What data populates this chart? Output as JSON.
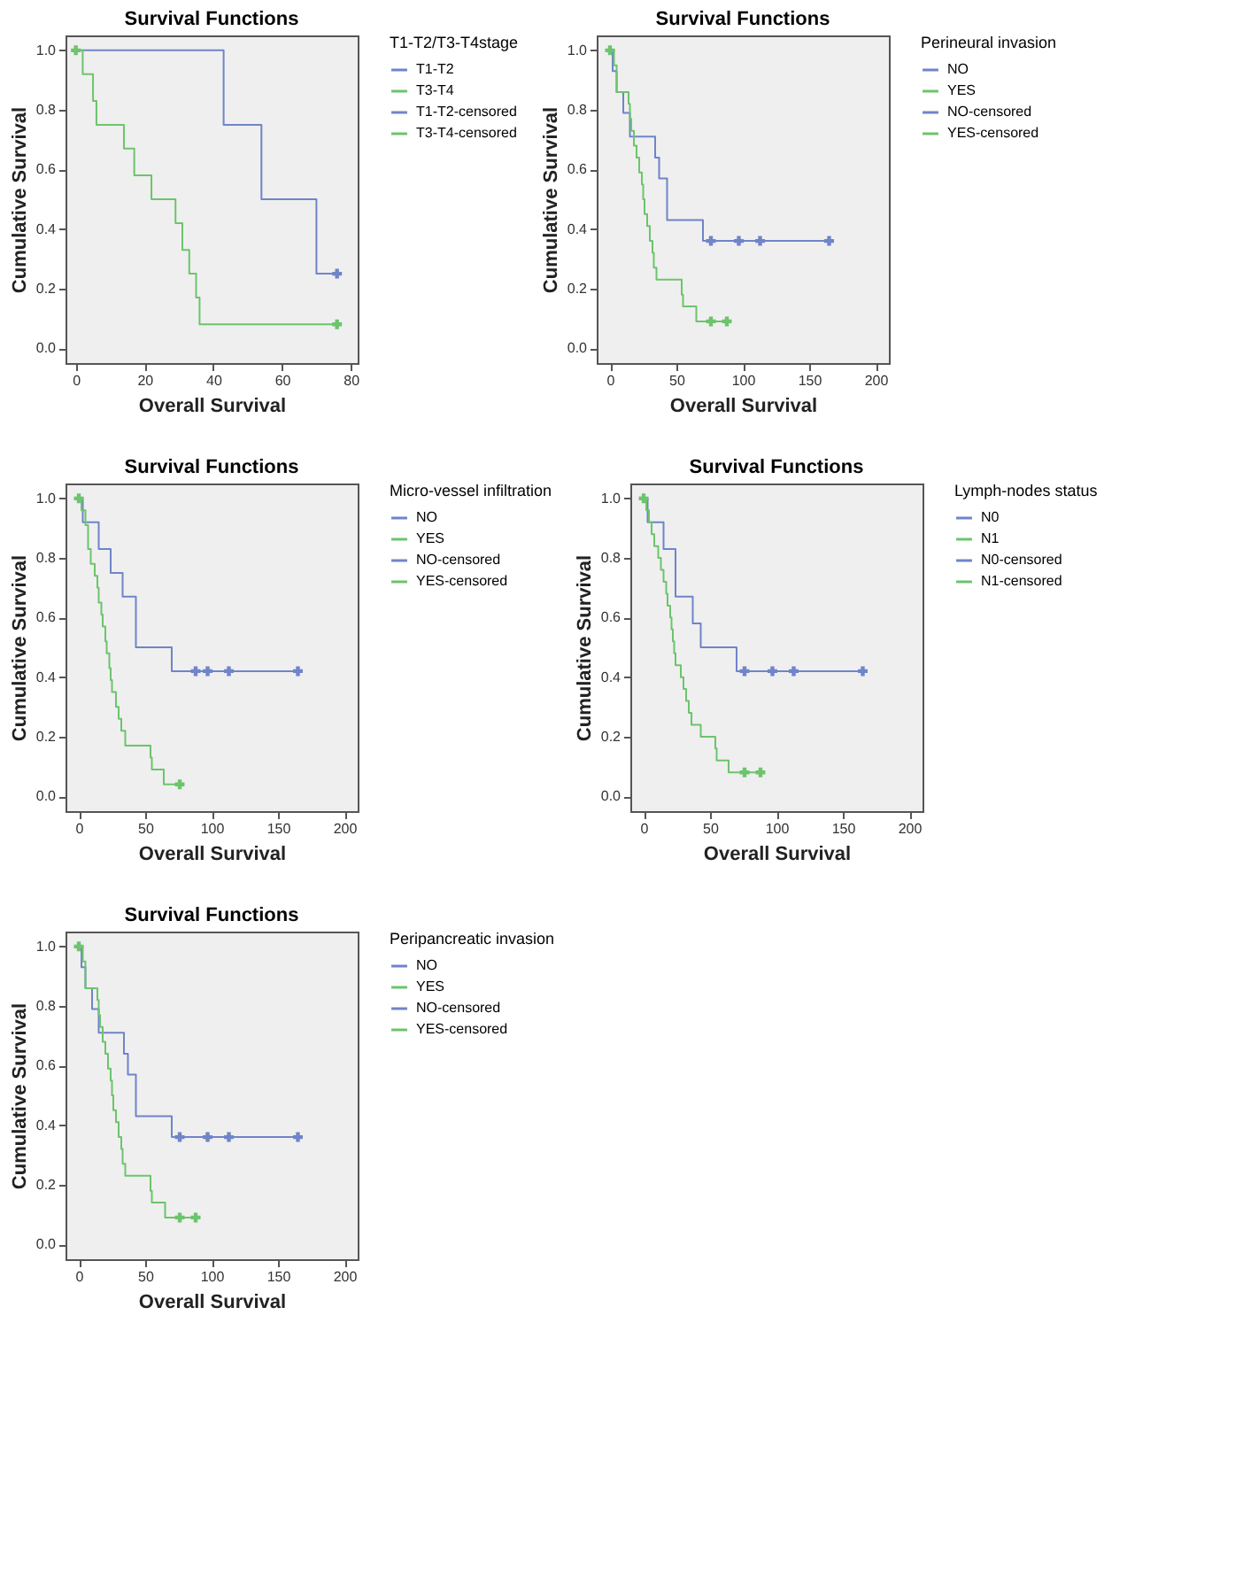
{
  "chart_data": [
    {
      "type": "step",
      "title": "Survival Functions",
      "xlabel": "Overall Survival",
      "ylabel": "Cumulative Survival",
      "legend_title": "T1-T2/T3-T4stage",
      "legend": "right",
      "grid": false,
      "line_style": "solid",
      "xlim": [
        -3,
        82
      ],
      "xticks": [
        0,
        20,
        40,
        60,
        80
      ],
      "ylim": [
        -0.05,
        1.05
      ],
      "yticks": [
        {
          "value": 0,
          "label": "0.0"
        },
        {
          "value": 0.2,
          "label": "0.2"
        },
        {
          "value": 0.4,
          "label": "0.4"
        },
        {
          "value": 0.6,
          "label": "0.6"
        },
        {
          "value": 0.8,
          "label": "0.8"
        },
        {
          "value": 1,
          "label": "1.0"
        }
      ],
      "series": [
        {
          "name": "T1-T2",
          "type": "step",
          "marker": "none",
          "color": "#6f84c9",
          "x": [
            0,
            43,
            54,
            70,
            76
          ],
          "values": [
            1,
            0.75,
            0.5,
            0.25,
            0.25
          ]
        },
        {
          "name": "T3-T4",
          "type": "step",
          "marker": "none",
          "color": "#6cc46c",
          "x": [
            0,
            2,
            5,
            6,
            14,
            17,
            22,
            29,
            31,
            33,
            35,
            36,
            76
          ],
          "values": [
            1,
            0.92,
            0.83,
            0.75,
            0.67,
            0.58,
            0.5,
            0.42,
            0.33,
            0.25,
            0.17,
            0.08,
            0.08
          ]
        },
        {
          "name": "T1-T2-censored",
          "type": "scatter",
          "marker": "cross",
          "color": "#6f84c9",
          "x": [
            76
          ],
          "values": [
            0.25
          ]
        },
        {
          "name": "T3-T4-censored",
          "type": "scatter",
          "marker": "cross",
          "color": "#6cc46c",
          "x": [
            0,
            76
          ],
          "values": [
            1,
            0.08
          ]
        }
      ]
    },
    {
      "type": "step",
      "title": "Survival Functions",
      "xlabel": "Overall Survival",
      "ylabel": "Cumulative Survival",
      "legend_title": "Perineural invasion",
      "legend": "right",
      "grid": false,
      "line_style": "solid",
      "xlim": [
        -10,
        210
      ],
      "xticks": [
        0,
        50,
        100,
        150,
        200
      ],
      "ylim": [
        -0.05,
        1.05
      ],
      "yticks": [
        {
          "value": 0,
          "label": "0.0"
        },
        {
          "value": 0.2,
          "label": "0.2"
        },
        {
          "value": 0.4,
          "label": "0.4"
        },
        {
          "value": 0.6,
          "label": "0.6"
        },
        {
          "value": 0.8,
          "label": "0.8"
        },
        {
          "value": 1,
          "label": "1.0"
        }
      ],
      "series": [
        {
          "name": "NO",
          "type": "step",
          "marker": "none",
          "color": "#6f84c9",
          "x": [
            0,
            2,
            5,
            10,
            15,
            34,
            37,
            43,
            70,
            165
          ],
          "values": [
            1,
            0.93,
            0.86,
            0.79,
            0.71,
            0.64,
            0.57,
            0.43,
            0.36,
            0.36
          ]
        },
        {
          "name": "YES",
          "type": "step",
          "marker": "none",
          "color": "#6cc46c",
          "x": [
            0,
            3,
            5,
            14,
            15,
            16,
            18,
            20,
            22,
            24,
            25,
            26,
            28,
            30,
            32,
            33,
            35,
            54,
            55,
            65,
            88
          ],
          "values": [
            1,
            0.95,
            0.86,
            0.82,
            0.77,
            0.73,
            0.68,
            0.64,
            0.59,
            0.55,
            0.5,
            0.45,
            0.41,
            0.36,
            0.32,
            0.27,
            0.23,
            0.18,
            0.14,
            0.09,
            0.09
          ]
        },
        {
          "name": "NO-censored",
          "type": "scatter",
          "marker": "cross",
          "color": "#6f84c9",
          "x": [
            76,
            97,
            113,
            165
          ],
          "values": [
            0.36,
            0.36,
            0.36,
            0.36
          ]
        },
        {
          "name": "YES-censored",
          "type": "scatter",
          "marker": "cross",
          "color": "#6cc46c",
          "x": [
            0,
            76,
            88
          ],
          "values": [
            1,
            0.09,
            0.09
          ]
        }
      ]
    },
    {
      "type": "step",
      "title": "Survival Functions",
      "xlabel": "Overall Survival",
      "ylabel": "Cumulative Survival",
      "legend_title": "Micro-vessel infiltration",
      "legend": "right",
      "grid": false,
      "line_style": "solid",
      "xlim": [
        -10,
        210
      ],
      "xticks": [
        0,
        50,
        100,
        150,
        200
      ],
      "ylim": [
        -0.05,
        1.05
      ],
      "yticks": [
        {
          "value": 0,
          "label": "0.0"
        },
        {
          "value": 0.2,
          "label": "0.2"
        },
        {
          "value": 0.4,
          "label": "0.4"
        },
        {
          "value": 0.6,
          "label": "0.6"
        },
        {
          "value": 0.8,
          "label": "0.8"
        },
        {
          "value": 1,
          "label": "1.0"
        }
      ],
      "series": [
        {
          "name": "NO",
          "type": "step",
          "marker": "none",
          "color": "#6f84c9",
          "x": [
            0,
            3,
            15,
            24,
            33,
            43,
            70,
            165
          ],
          "values": [
            1,
            0.92,
            0.83,
            0.75,
            0.67,
            0.5,
            0.42,
            0.42
          ]
        },
        {
          "name": "YES",
          "type": "step",
          "marker": "none",
          "color": "#6cc46c",
          "x": [
            0,
            2,
            5,
            7,
            9,
            12,
            14,
            15,
            17,
            18,
            20,
            21,
            23,
            24,
            25,
            28,
            30,
            32,
            35,
            54,
            55,
            64,
            76
          ],
          "values": [
            1,
            0.96,
            0.91,
            0.83,
            0.78,
            0.74,
            0.7,
            0.65,
            0.61,
            0.57,
            0.52,
            0.48,
            0.43,
            0.39,
            0.35,
            0.3,
            0.26,
            0.22,
            0.17,
            0.13,
            0.09,
            0.04,
            0.04
          ]
        },
        {
          "name": "NO-censored",
          "type": "scatter",
          "marker": "cross",
          "color": "#6f84c9",
          "x": [
            88,
            97,
            113,
            165
          ],
          "values": [
            0.42,
            0.42,
            0.42,
            0.42
          ]
        },
        {
          "name": "YES-censored",
          "type": "scatter",
          "marker": "cross",
          "color": "#6cc46c",
          "x": [
            0,
            76
          ],
          "values": [
            1,
            0.04
          ]
        }
      ]
    },
    {
      "type": "step",
      "title": "Survival Functions",
      "xlabel": "Overall Survival",
      "ylabel": "Cumulative Survival",
      "legend_title": "Lymph-nodes status",
      "legend": "right",
      "grid": false,
      "line_style": "solid",
      "xlim": [
        -10,
        210
      ],
      "xticks": [
        0,
        50,
        100,
        150,
        200
      ],
      "ylim": [
        -0.05,
        1.05
      ],
      "yticks": [
        {
          "value": 0,
          "label": "0.0"
        },
        {
          "value": 0.2,
          "label": "0.2"
        },
        {
          "value": 0.4,
          "label": "0.4"
        },
        {
          "value": 0.6,
          "label": "0.6"
        },
        {
          "value": 0.8,
          "label": "0.8"
        },
        {
          "value": 1,
          "label": "1.0"
        }
      ],
      "series": [
        {
          "name": "N0",
          "type": "step",
          "marker": "none",
          "color": "#6f84c9",
          "x": [
            0,
            3,
            15,
            24,
            37,
            43,
            70,
            165
          ],
          "values": [
            1,
            0.92,
            0.83,
            0.67,
            0.58,
            0.5,
            0.42,
            0.42
          ]
        },
        {
          "name": "N1",
          "type": "step",
          "marker": "none",
          "color": "#6cc46c",
          "x": [
            0,
            2,
            4,
            6,
            8,
            11,
            13,
            15,
            17,
            18,
            20,
            21,
            22,
            23,
            24,
            28,
            30,
            32,
            34,
            36,
            43,
            54,
            55,
            64,
            88
          ],
          "values": [
            1,
            0.96,
            0.92,
            0.88,
            0.84,
            0.8,
            0.76,
            0.72,
            0.68,
            0.64,
            0.6,
            0.56,
            0.52,
            0.48,
            0.44,
            0.4,
            0.36,
            0.32,
            0.28,
            0.24,
            0.2,
            0.16,
            0.12,
            0.08,
            0.08
          ]
        },
        {
          "name": "N0-censored",
          "type": "scatter",
          "marker": "cross",
          "color": "#6f84c9",
          "x": [
            76,
            97,
            113,
            165
          ],
          "values": [
            0.42,
            0.42,
            0.42,
            0.42
          ]
        },
        {
          "name": "N1-censored",
          "type": "scatter",
          "marker": "cross",
          "color": "#6cc46c",
          "x": [
            0,
            76,
            88
          ],
          "values": [
            1,
            0.08,
            0.08
          ]
        }
      ]
    },
    {
      "type": "step",
      "title": "Survival Functions",
      "xlabel": "Overall Survival",
      "ylabel": "Cumulative Survival",
      "legend_title": "Peripancreatic invasion",
      "legend": "right",
      "grid": false,
      "line_style": "solid",
      "xlim": [
        -10,
        210
      ],
      "xticks": [
        0,
        50,
        100,
        150,
        200
      ],
      "ylim": [
        -0.05,
        1.05
      ],
      "yticks": [
        {
          "value": 0,
          "label": "0.0"
        },
        {
          "value": 0.2,
          "label": "0.2"
        },
        {
          "value": 0.4,
          "label": "0.4"
        },
        {
          "value": 0.6,
          "label": "0.6"
        },
        {
          "value": 0.8,
          "label": "0.8"
        },
        {
          "value": 1,
          "label": "1.0"
        }
      ],
      "series": [
        {
          "name": "NO",
          "type": "step",
          "marker": "none",
          "color": "#6f84c9",
          "x": [
            0,
            2,
            5,
            10,
            15,
            34,
            37,
            43,
            70,
            165
          ],
          "values": [
            1,
            0.93,
            0.86,
            0.79,
            0.71,
            0.64,
            0.57,
            0.43,
            0.36,
            0.36
          ]
        },
        {
          "name": "YES",
          "type": "step",
          "marker": "none",
          "color": "#6cc46c",
          "x": [
            0,
            3,
            5,
            14,
            15,
            16,
            18,
            20,
            22,
            24,
            25,
            26,
            28,
            30,
            32,
            33,
            35,
            54,
            55,
            65,
            88
          ],
          "values": [
            1,
            0.95,
            0.86,
            0.82,
            0.77,
            0.73,
            0.68,
            0.64,
            0.59,
            0.55,
            0.5,
            0.45,
            0.41,
            0.36,
            0.32,
            0.27,
            0.23,
            0.18,
            0.14,
            0.09,
            0.09
          ]
        },
        {
          "name": "NO-censored",
          "type": "scatter",
          "marker": "cross",
          "color": "#6f84c9",
          "x": [
            76,
            97,
            113,
            165
          ],
          "values": [
            0.36,
            0.36,
            0.36,
            0.36
          ]
        },
        {
          "name": "YES-censored",
          "type": "scatter",
          "marker": "cross",
          "color": "#6cc46c",
          "x": [
            0,
            76,
            88
          ],
          "values": [
            1,
            0.09,
            0.09
          ]
        }
      ]
    }
  ]
}
